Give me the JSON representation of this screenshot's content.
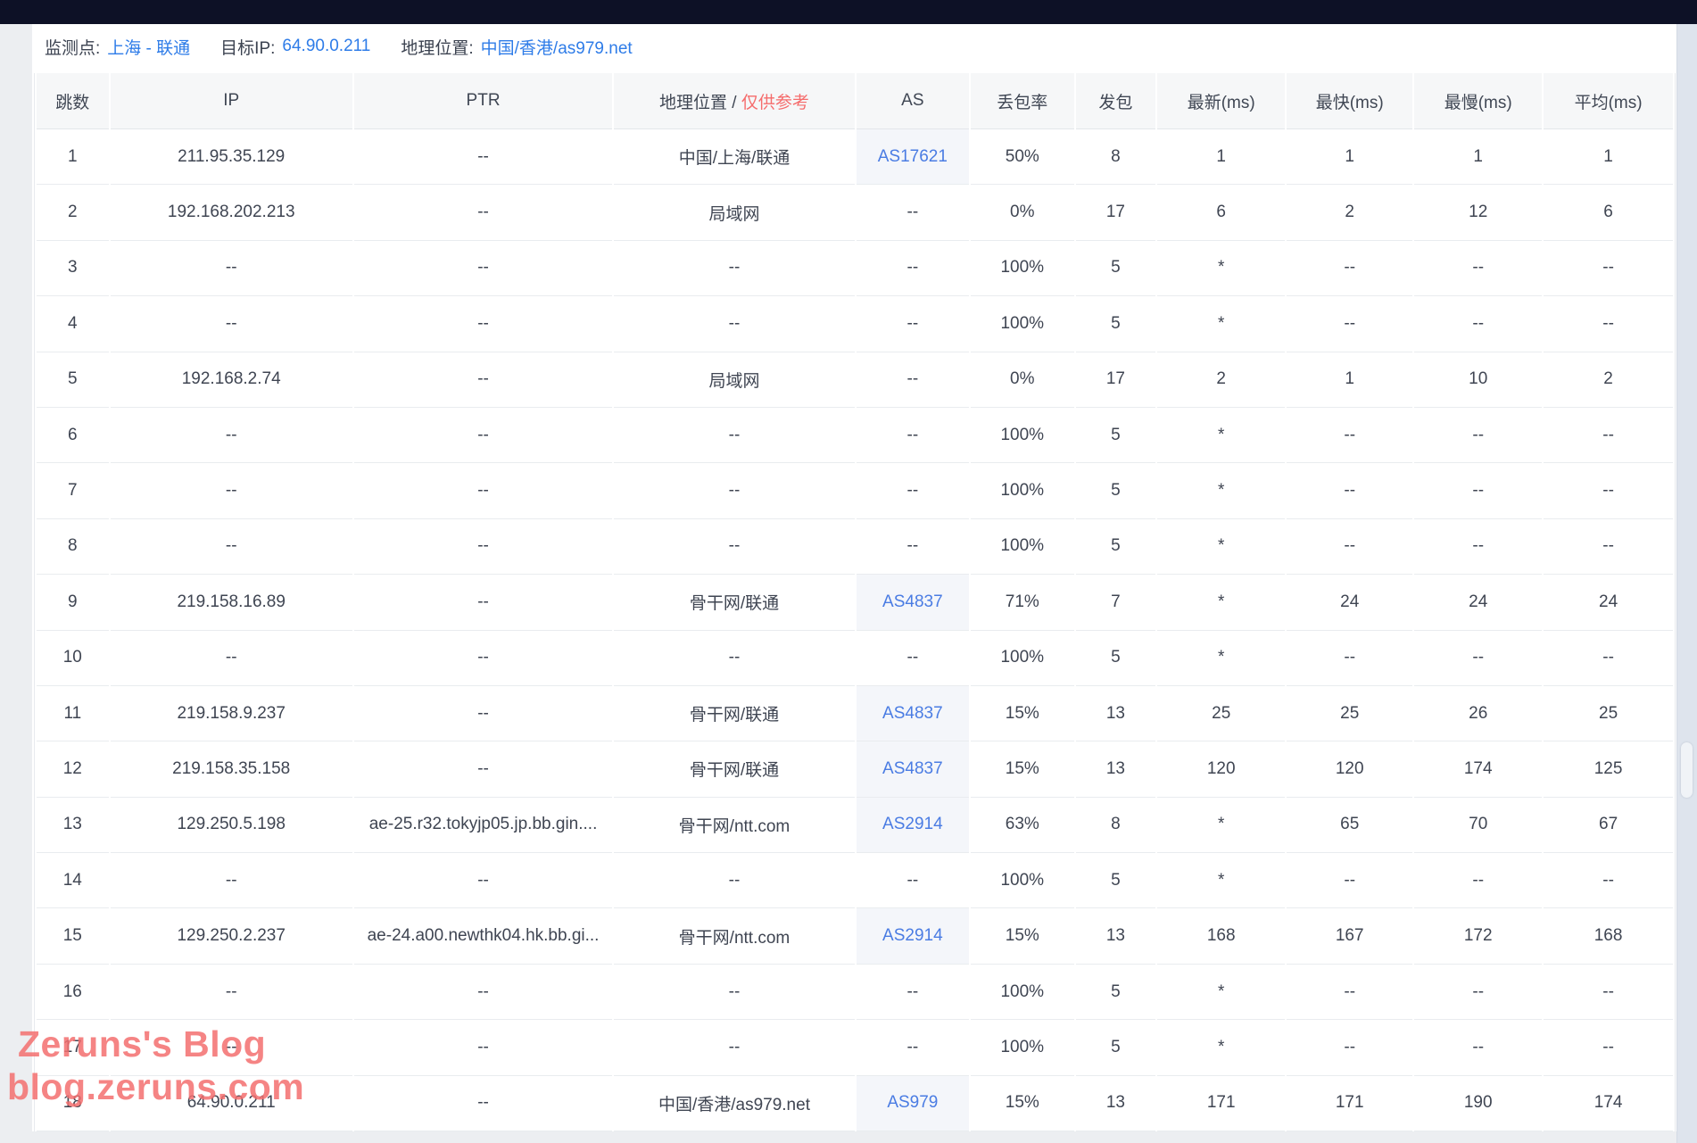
{
  "info": {
    "monitor_label": "监测点:",
    "monitor_value": "上海 - 联通",
    "target_ip_label": "目标IP:",
    "target_ip_value": "64.90.0.211",
    "location_label": "地理位置:",
    "location_value": "中国/香港/as979.net"
  },
  "table": {
    "headers": {
      "hop": "跳数",
      "ip": "IP",
      "ptr": "PTR",
      "geo_main": "地理位置 / ",
      "geo_note": "仅供参考",
      "as": "AS",
      "loss": "丢包率",
      "sent": "发包",
      "latest": "最新(ms)",
      "fastest": "最快(ms)",
      "slowest": "最慢(ms)",
      "avg": "平均(ms)"
    },
    "rows": [
      {
        "hop": "1",
        "ip": "211.95.35.129",
        "ptr": "--",
        "geo": "中国/上海/联通",
        "as": "AS17621",
        "loss": "50%",
        "sent": "8",
        "latest": "1",
        "fastest": "1",
        "slowest": "1",
        "avg": "1"
      },
      {
        "hop": "2",
        "ip": "192.168.202.213",
        "ptr": "--",
        "geo": "局域网",
        "as": "--",
        "loss": "0%",
        "sent": "17",
        "latest": "6",
        "fastest": "2",
        "slowest": "12",
        "avg": "6"
      },
      {
        "hop": "3",
        "ip": "--",
        "ptr": "--",
        "geo": "--",
        "as": "--",
        "loss": "100%",
        "sent": "5",
        "latest": "*",
        "fastest": "--",
        "slowest": "--",
        "avg": "--"
      },
      {
        "hop": "4",
        "ip": "--",
        "ptr": "--",
        "geo": "--",
        "as": "--",
        "loss": "100%",
        "sent": "5",
        "latest": "*",
        "fastest": "--",
        "slowest": "--",
        "avg": "--"
      },
      {
        "hop": "5",
        "ip": "192.168.2.74",
        "ptr": "--",
        "geo": "局域网",
        "as": "--",
        "loss": "0%",
        "sent": "17",
        "latest": "2",
        "fastest": "1",
        "slowest": "10",
        "avg": "2"
      },
      {
        "hop": "6",
        "ip": "--",
        "ptr": "--",
        "geo": "--",
        "as": "--",
        "loss": "100%",
        "sent": "5",
        "latest": "*",
        "fastest": "--",
        "slowest": "--",
        "avg": "--"
      },
      {
        "hop": "7",
        "ip": "--",
        "ptr": "--",
        "geo": "--",
        "as": "--",
        "loss": "100%",
        "sent": "5",
        "latest": "*",
        "fastest": "--",
        "slowest": "--",
        "avg": "--"
      },
      {
        "hop": "8",
        "ip": "--",
        "ptr": "--",
        "geo": "--",
        "as": "--",
        "loss": "100%",
        "sent": "5",
        "latest": "*",
        "fastest": "--",
        "slowest": "--",
        "avg": "--"
      },
      {
        "hop": "9",
        "ip": "219.158.16.89",
        "ptr": "--",
        "geo": "骨干网/联通",
        "as": "AS4837",
        "loss": "71%",
        "sent": "7",
        "latest": "*",
        "fastest": "24",
        "slowest": "24",
        "avg": "24"
      },
      {
        "hop": "10",
        "ip": "--",
        "ptr": "--",
        "geo": "--",
        "as": "--",
        "loss": "100%",
        "sent": "5",
        "latest": "*",
        "fastest": "--",
        "slowest": "--",
        "avg": "--"
      },
      {
        "hop": "11",
        "ip": "219.158.9.237",
        "ptr": "--",
        "geo": "骨干网/联通",
        "as": "AS4837",
        "loss": "15%",
        "sent": "13",
        "latest": "25",
        "fastest": "25",
        "slowest": "26",
        "avg": "25"
      },
      {
        "hop": "12",
        "ip": "219.158.35.158",
        "ptr": "--",
        "geo": "骨干网/联通",
        "as": "AS4837",
        "loss": "15%",
        "sent": "13",
        "latest": "120",
        "fastest": "120",
        "slowest": "174",
        "avg": "125"
      },
      {
        "hop": "13",
        "ip": "129.250.5.198",
        "ptr": "ae-25.r32.tokyjp05.jp.bb.gin....",
        "geo": "骨干网/ntt.com",
        "as": "AS2914",
        "loss": "63%",
        "sent": "8",
        "latest": "*",
        "fastest": "65",
        "slowest": "70",
        "avg": "67"
      },
      {
        "hop": "14",
        "ip": "--",
        "ptr": "--",
        "geo": "--",
        "as": "--",
        "loss": "100%",
        "sent": "5",
        "latest": "*",
        "fastest": "--",
        "slowest": "--",
        "avg": "--"
      },
      {
        "hop": "15",
        "ip": "129.250.2.237",
        "ptr": "ae-24.a00.newthk04.hk.bb.gi...",
        "geo": "骨干网/ntt.com",
        "as": "AS2914",
        "loss": "15%",
        "sent": "13",
        "latest": "168",
        "fastest": "167",
        "slowest": "172",
        "avg": "168"
      },
      {
        "hop": "16",
        "ip": "--",
        "ptr": "--",
        "geo": "--",
        "as": "--",
        "loss": "100%",
        "sent": "5",
        "latest": "*",
        "fastest": "--",
        "slowest": "--",
        "avg": "--"
      },
      {
        "hop": "17",
        "ip": "--",
        "ptr": "--",
        "geo": "--",
        "as": "--",
        "loss": "100%",
        "sent": "5",
        "latest": "*",
        "fastest": "--",
        "slowest": "--",
        "avg": "--"
      },
      {
        "hop": "18",
        "ip": "64.90.0.211",
        "ptr": "--",
        "geo": "中国/香港/as979.net",
        "as": "AS979",
        "loss": "15%",
        "sent": "13",
        "latest": "171",
        "fastest": "171",
        "slowest": "190",
        "avg": "174"
      }
    ]
  },
  "watermark": {
    "line1": "Zeruns's Blog",
    "line2": "blog.zeruns.com"
  },
  "colors": {
    "topbar_bg": "#0d1126",
    "link_blue": "#2e7ce8",
    "as_link_blue": "#4a7ce3",
    "note_red": "#f56c6c",
    "watermark_pink": "#f36e6e",
    "header_bg": "#f6f7f8",
    "scroll_strip_bg": "#dee4ed"
  }
}
